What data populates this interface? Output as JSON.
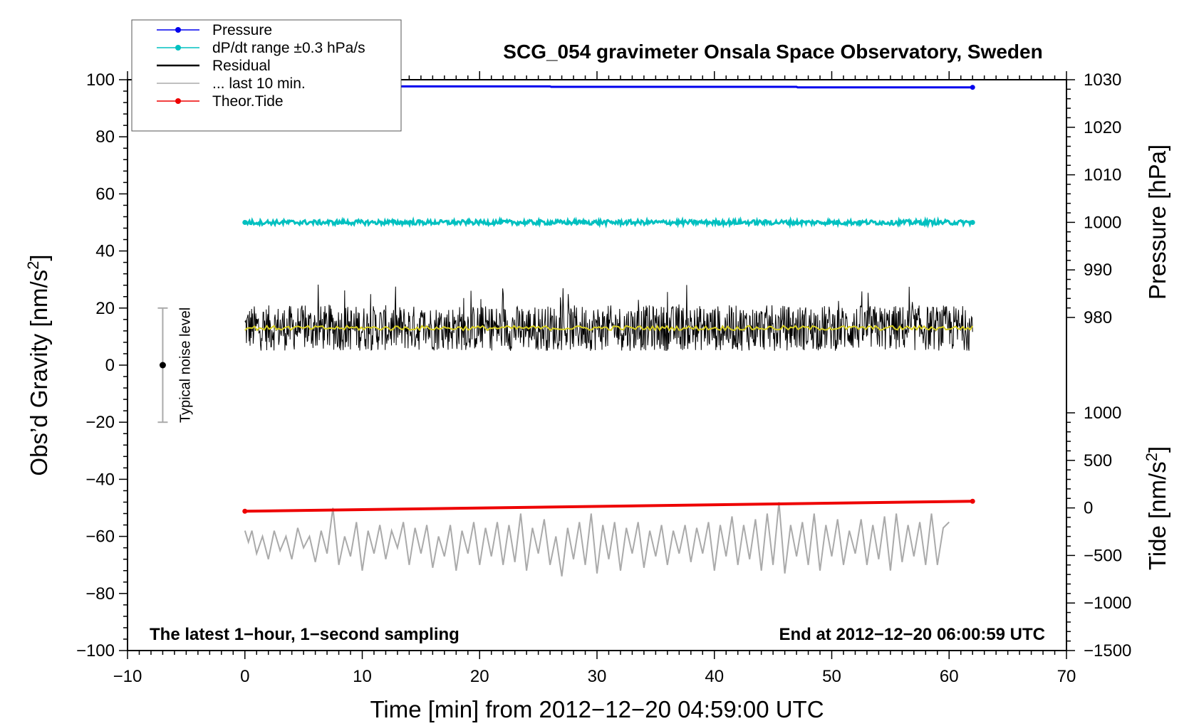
{
  "chart_data": {
    "type": "line",
    "title": "SCG_054 gravimeter Onsala Space Observatory, Sweden",
    "xlabel": "Time [min] from 2012−12−20 04:59:00 UTC",
    "ylabel_left": "Obs’d Gravity [nm/s",
    "ylabel_left_sup": "2",
    "ylabel_left_close": "]",
    "ylabel_right_pressure": "Pressure [hPa]",
    "ylabel_right_tide": "Tide [nm/s",
    "ylabel_right_tide_sup": "2",
    "ylabel_right_tide_close": "]",
    "xlim": [
      -10,
      70
    ],
    "ylim_left": [
      -100,
      100
    ],
    "ylim_pressure": [
      980,
      1030
    ],
    "ylim_tide": [
      -1500,
      1000
    ],
    "x_ticks": [
      "−10",
      "0",
      "10",
      "20",
      "30",
      "40",
      "50",
      "60",
      "70"
    ],
    "y_left_ticks": [
      "100",
      "80",
      "60",
      "40",
      "20",
      "0",
      "−20",
      "−40",
      "−60",
      "−80",
      "−100"
    ],
    "y_pressure_ticks": [
      "1030",
      "1020",
      "1010",
      "1000",
      "990",
      "980"
    ],
    "y_tide_ticks": [
      "1000",
      "500",
      "0",
      "−500",
      "−1000",
      "−1500"
    ],
    "grid": false,
    "legend_position": "top-left",
    "annotation_left": "The latest 1−hour, 1−second sampling",
    "annotation_right": "End at 2012−12−20 06:00:59 UTC",
    "noise_label": "Typical noise level",
    "noise_bar": {
      "x": -7,
      "center": 0,
      "low": -20,
      "high": 20
    },
    "legend": [
      {
        "name": "Pressure",
        "color": "#0000ee"
      },
      {
        "name": "dP/dt range ±0.3 hPa/s",
        "color": "#00c0c0"
      },
      {
        "name": "Residual",
        "color": "#000000"
      },
      {
        "name": "... last 10 min.",
        "color": "#aaaaaa"
      },
      {
        "name": "Theor.Tide",
        "color": "#ee0000"
      }
    ],
    "series": [
      {
        "name": "Pressure",
        "axis": "pressure",
        "color": "#0000ee",
        "x": [
          0,
          26,
          26.1,
          47,
          47.1,
          62
        ],
        "y": [
          1028.6,
          1028.6,
          1028.5,
          1028.5,
          1028.4,
          1028.4
        ]
      },
      {
        "name": "dP/dt range ±0.3 hPa/s",
        "axis": "left",
        "color": "#00c0c0",
        "x": [
          0,
          62
        ],
        "y": [
          50,
          50
        ],
        "noise_amplitude": 0.8
      },
      {
        "name": "Residual",
        "axis": "left",
        "color": "#000000",
        "x_start": 0,
        "x_end": 62,
        "mean": 13,
        "noise_amplitude": 8,
        "peak_max": 33,
        "peak_min": -2
      },
      {
        "name": "... last 10 min.",
        "axis": "left",
        "color": "#aaaaaa",
        "x": [
          0,
          0.3,
          0.6,
          1.0,
          1.5,
          2.0,
          2.5,
          3.0,
          3.5,
          4.0,
          4.5,
          5.0,
          5.5,
          6.0,
          6.5,
          7.0,
          7.5,
          8.0,
          8.5,
          9.0,
          9.5,
          10.0,
          10.5,
          11.0,
          11.5,
          12.0,
          12.5,
          13.0,
          13.5,
          14.0,
          14.5,
          15.0,
          15.5,
          16.0,
          16.5,
          17.0,
          17.5,
          18.0,
          18.5,
          19.0,
          19.5,
          20.0,
          20.5,
          21.0,
          21.5,
          22.0,
          22.5,
          23.0,
          23.5,
          24.0,
          24.5,
          25.0,
          25.5,
          26.0,
          26.5,
          27.0,
          27.5,
          28.0,
          28.5,
          29.0,
          29.5,
          30.0,
          30.5,
          31.0,
          31.5,
          32.0,
          32.5,
          33.0,
          33.5,
          34.0,
          34.5,
          35.0,
          35.5,
          36.0,
          36.5,
          37.0,
          37.5,
          38.0,
          38.5,
          39.0,
          39.5,
          40.0,
          40.5,
          41.0,
          41.5,
          42.0,
          42.5,
          43.0,
          43.5,
          44.0,
          44.5,
          45.0,
          45.5,
          46.0,
          46.5,
          47.0,
          47.5,
          48.0,
          48.5,
          49.0,
          49.5,
          50.0,
          50.5,
          51.0,
          51.5,
          52.0,
          52.5,
          53.0,
          53.5,
          54.0,
          54.5,
          55.0,
          55.5,
          56.0,
          56.5,
          57.0,
          57.5,
          58.0,
          58.5,
          59.0,
          59.5,
          60.0
        ],
        "y": [
          -58,
          -62,
          -58,
          -66,
          -60,
          -68,
          -58,
          -65,
          -60,
          -68,
          -57,
          -64,
          -60,
          -69,
          -58,
          -66,
          -50,
          -70,
          -60,
          -67,
          -55,
          -72,
          -58,
          -66,
          -56,
          -68,
          -58,
          -64,
          -55,
          -70,
          -57,
          -66,
          -56,
          -71,
          -60,
          -67,
          -56,
          -72,
          -58,
          -66,
          -55,
          -70,
          -57,
          -67,
          -55,
          -70,
          -56,
          -69,
          -52,
          -72,
          -57,
          -66,
          -54,
          -70,
          -60,
          -74,
          -57,
          -68,
          -55,
          -70,
          -52,
          -73,
          -56,
          -68,
          -55,
          -72,
          -57,
          -66,
          -55,
          -71,
          -58,
          -67,
          -56,
          -70,
          -58,
          -66,
          -56,
          -69,
          -57,
          -66,
          -55,
          -72,
          -56,
          -67,
          -53,
          -70,
          -56,
          -68,
          -54,
          -72,
          -52,
          -70,
          -48,
          -73,
          -56,
          -67,
          -55,
          -70,
          -52,
          -72,
          -56,
          -67,
          -54,
          -70,
          -58,
          -66,
          -54,
          -70,
          -56,
          -68,
          -53,
          -72,
          -52,
          -69,
          -56,
          -67,
          -55,
          -70,
          -52,
          -70,
          -57,
          -55
        ]
      },
      {
        "name": "Theor.Tide",
        "axis": "tide",
        "color": "#ee0000",
        "x": [
          0,
          62
        ],
        "y": [
          -35,
          70
        ]
      }
    ]
  }
}
